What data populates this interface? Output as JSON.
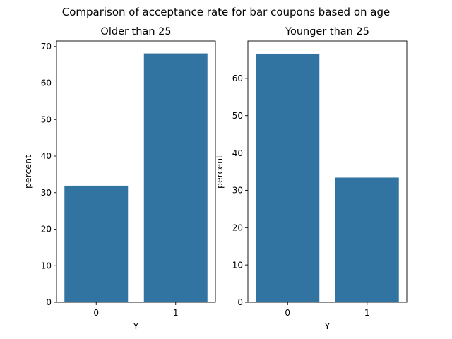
{
  "figure": {
    "suptitle": "Comparison of acceptance rate for bar coupons based on age"
  },
  "chart_data": [
    {
      "type": "bar",
      "title": "Older than 25",
      "xlabel": "Y",
      "ylabel": "percent",
      "categories": [
        "0",
        "1"
      ],
      "values": [
        31.9,
        68.1
      ],
      "ylim": [
        0,
        71.5
      ],
      "yticks": [
        0,
        10,
        20,
        30,
        40,
        50,
        60,
        70
      ],
      "color": "#3274a1",
      "grid": false
    },
    {
      "type": "bar",
      "title": "Younger than 25",
      "xlabel": "Y",
      "ylabel": "percent",
      "categories": [
        "0",
        "1"
      ],
      "values": [
        66.6,
        33.4
      ],
      "ylim": [
        0,
        70
      ],
      "yticks": [
        0,
        10,
        20,
        30,
        40,
        50,
        60
      ],
      "color": "#3274a1",
      "grid": false
    }
  ]
}
